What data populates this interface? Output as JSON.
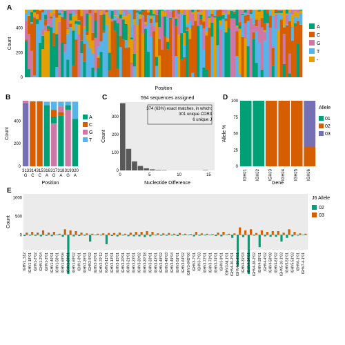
{
  "colors": {
    "A": "#00a077",
    "C": "#d55e00",
    "G": "#cc79a7",
    "T": "#56b4e9",
    "dash": "#e69f00",
    "allele01": "#00a077",
    "allele02": "#d55e00",
    "allele03": "#7570b3",
    "j6_02": "#00a077",
    "j6_03": "#d55e00",
    "hist": "#595959",
    "grid": "#ebebeb",
    "bg": "#ffffff",
    "border": "#000000"
  },
  "panelA": {
    "label": "A",
    "xlabel": "Position",
    "ylabel": "Count",
    "ymax": 550,
    "yticks": [
      0,
      200,
      400
    ],
    "n_positions": 100,
    "legend": [
      "A",
      "C",
      "G",
      "T",
      "-"
    ]
  },
  "panelB": {
    "label": "B",
    "xlabel": "Position",
    "ylabel": "Count",
    "ymax": 580,
    "yticks": [
      0,
      200,
      400
    ],
    "positions": [
      "313\nG",
      "314\nC",
      "315\nC",
      "316\nA",
      "317\nG",
      "318\nA",
      "319\nG",
      "320\nA"
    ],
    "stacks": [
      [
        [
          "allele03",
          560
        ],
        [
          "G",
          20
        ]
      ],
      [
        [
          "C",
          575
        ]
      ],
      [
        [
          "C",
          575
        ]
      ],
      [
        [
          "A",
          540
        ],
        [
          "T",
          30
        ]
      ],
      [
        [
          "G",
          380
        ],
        [
          "A",
          60
        ],
        [
          "C",
          60
        ],
        [
          "T",
          70
        ]
      ],
      [
        [
          "A",
          450
        ],
        [
          "C",
          30
        ],
        [
          "G",
          50
        ],
        [
          "T",
          40
        ]
      ],
      [
        [
          "G",
          500
        ],
        [
          "A",
          40
        ],
        [
          "T",
          30
        ]
      ],
      [
        [
          "A",
          420
        ],
        [
          "T",
          150
        ]
      ]
    ],
    "stackColors": {
      "A": "#00a077",
      "C": "#d55e00",
      "G": "#cc79a7",
      "T": "#56b4e9",
      "allele03": "#7570b3"
    }
  },
  "panelC": {
    "label": "C",
    "title": "594 sequences assigned",
    "boxLines": [
      "374 (63%) exact matches, in which:",
      "301 unique CDR3",
      "6 unique J"
    ],
    "xlabel": "Nucleotide Difference",
    "ylabel": "Count",
    "ymax": 380,
    "yticks": [
      0,
      100,
      200,
      300
    ],
    "xticks": [
      0,
      5,
      10,
      15
    ],
    "bars": [
      [
        0,
        374
      ],
      [
        1,
        120
      ],
      [
        2,
        50
      ],
      [
        3,
        25
      ],
      [
        4,
        12
      ],
      [
        5,
        6
      ],
      [
        6,
        3
      ],
      [
        7,
        2
      ],
      [
        14,
        2
      ]
    ]
  },
  "panelD": {
    "label": "D",
    "xlabel": "Gene",
    "ylabel": "Allele %",
    "ymax": 100,
    "yticks": [
      0,
      25,
      50,
      75,
      100
    ],
    "genes": [
      "IGHJ1",
      "IGHJ2",
      "IGHJ3",
      "IGHJ4",
      "IGHJ5",
      "IGHJ6"
    ],
    "bars": [
      [
        [
          "01",
          100
        ]
      ],
      [
        [
          "01",
          100
        ]
      ],
      [
        [
          "02",
          100
        ]
      ],
      [
        [
          "02",
          100
        ]
      ],
      [
        [
          "02",
          100
        ]
      ],
      [
        [
          "02",
          30
        ],
        [
          "03",
          70
        ]
      ]
    ],
    "legend": [
      "01",
      "02",
      "03"
    ]
  },
  "panelE": {
    "label": "E",
    "ylabel": "Count",
    "legendTitle": "J6 Allele",
    "legend": [
      "02",
      "03"
    ],
    "yticks": [
      0,
      500,
      1000
    ],
    "ymax_pos": 1100,
    "ymax_neg": 400,
    "genes": [
      "IGHV1_S12",
      "IGHV1-18*01",
      "IGHV1-2*02",
      "IGHV1-2*04",
      "IGHV1-3*01",
      "IGHV1-46*01",
      "IGHV1-58*01",
      "IGHV1-69*06",
      "IGHV1-69*01",
      "IGHV1-69*02",
      "IGHV1-8*01",
      "IGHV2-26*01",
      "IGHV2-5*02",
      "IGHV2-70*01",
      "IGHV2-70*12",
      "IGHV3-11*01",
      "IGHV3-13*01",
      "IGHV3-15*01",
      "IGHV3-20*01",
      "IGHV3-21*01",
      "IGHV3-23*01",
      "IGHV3-30*02",
      "IGHV3-30*18",
      "IGHV3-33*01",
      "IGHV3-43*01",
      "IGHV3-48*02",
      "IGHV3-48*03",
      "IGHV3-49*04",
      "IGHV3-53*01",
      "IGHV3-64*02",
      "IGHV3-64D*06",
      "IGHV3-7*01",
      "IGHV3-7*03",
      "IGHV3-72*01",
      "IGHV3-73*01",
      "IGHV3-74*01",
      "IGHV3-9*01",
      "IGHV3-NL1*01",
      "IGHV4-30-2*01",
      "IGHV4-30-4*01",
      "IGHV4-31*03",
      "IGHV4-34*01",
      "IGHV4-38-2*02",
      "IGHV4-39*01",
      "IGHV4-4*02",
      "IGHV4-59*08",
      "IGHV4-61*02",
      "IGHV5-10-1*03",
      "IGHV5-51*01",
      "IGHV5-51*03",
      "IGHV6-1*01",
      "IGHV7-4-1*01"
    ],
    "bars02": [
      30,
      20,
      25,
      40,
      25,
      35,
      10,
      50,
      1050,
      40,
      30,
      20,
      180,
      10,
      15,
      250,
      30,
      40,
      15,
      35,
      40,
      40,
      60,
      40,
      15,
      20,
      20,
      15,
      30,
      10,
      10,
      40,
      20,
      15,
      10,
      30,
      40,
      10,
      80,
      850,
      60,
      1050,
      20,
      330,
      40,
      50,
      50,
      180,
      80,
      40,
      20,
      10
    ],
    "bars03": [
      60,
      80,
      60,
      120,
      60,
      80,
      30,
      150,
      120,
      100,
      60,
      40,
      30,
      30,
      40,
      50,
      50,
      60,
      30,
      60,
      80,
      80,
      100,
      80,
      40,
      40,
      50,
      30,
      50,
      30,
      20,
      80,
      40,
      30,
      20,
      60,
      80,
      30,
      40,
      200,
      120,
      150,
      50,
      120,
      80,
      100,
      100,
      60,
      150,
      80,
      40,
      30
    ]
  }
}
